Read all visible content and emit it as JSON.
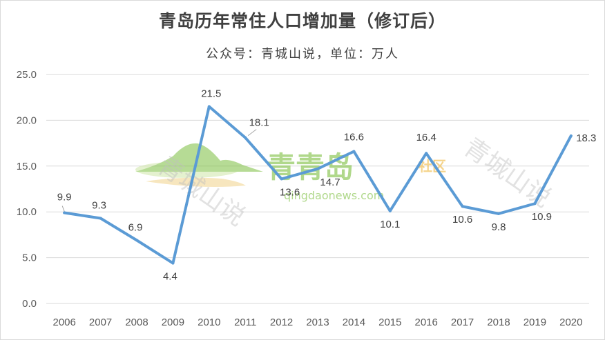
{
  "title": "青岛历年常住人口增加量（修订后）",
  "subtitle": "公众号：青城山说，单位：万人",
  "watermark": {
    "logo_text": "青青岛",
    "logo_suffix": "社区",
    "url": "qingdaonews.com",
    "stamp_left": "青城山说",
    "stamp_right": "青城山说"
  },
  "colors": {
    "line": "#5b9bd5",
    "grid": "#d9d9d9",
    "text": "#595959",
    "watermark_green": "#7cbf3f",
    "watermark_yellow": "#f2d38a"
  },
  "chart_data": {
    "type": "line",
    "title": "青岛历年常住人口增加量（修订后）",
    "subtitle": "公众号：青城山说，单位：万人",
    "x": [
      "2006",
      "2007",
      "2008",
      "2009",
      "2010",
      "2011",
      "2012",
      "2013",
      "2014",
      "2015",
      "2016",
      "2017",
      "2018",
      "2019",
      "2020"
    ],
    "y_tick_labels": [
      "0.0",
      "5.0",
      "10.0",
      "15.0",
      "20.0",
      "25.0"
    ],
    "series": [
      {
        "values": [
          9.9,
          9.3,
          6.9,
          4.4,
          21.5,
          18.1,
          13.6,
          14.7,
          16.6,
          10.1,
          16.4,
          10.6,
          9.8,
          10.9,
          18.3
        ]
      }
    ],
    "data_labels": [
      "9.9",
      "9.3",
      "6.9",
      "4.4",
      "21.5",
      "18.1",
      "13.6",
      "14.7",
      "16.6",
      "10.1",
      "16.4",
      "10.6",
      "9.8",
      "10.9",
      "18.3"
    ],
    "ylim": [
      0,
      25
    ],
    "grid": true,
    "legend": "none"
  }
}
